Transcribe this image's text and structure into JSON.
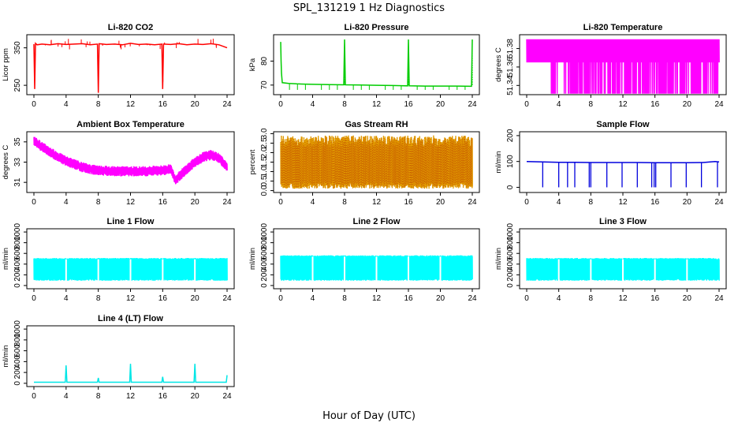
{
  "figure": {
    "title": "SPL_131219  1 Hz Diagnostics",
    "xlabel": "Hour of Day (UTC)"
  },
  "chart_data": [
    {
      "type": "line",
      "title": "Li-820 CO2",
      "ylabel": "Licor ppm",
      "color": "#ff0000",
      "xlim": [
        0,
        24
      ],
      "xticks": [
        0,
        4,
        8,
        12,
        16,
        20,
        24
      ],
      "ylim": [
        225,
        385
      ],
      "yticks": [
        250,
        350
      ],
      "x": [
        0,
        0.1,
        0.2,
        0.4,
        1,
        2,
        3,
        4,
        5,
        6,
        7,
        7.9,
        8,
        8.1,
        9,
        10,
        11,
        12,
        13,
        14,
        15,
        15.9,
        16,
        16.1,
        17,
        18,
        19,
        20,
        21,
        22,
        23,
        24
      ],
      "y": [
        360,
        240,
        362,
        358,
        360,
        358,
        361,
        359,
        360,
        361,
        358,
        360,
        230,
        361,
        359,
        360,
        358,
        362,
        359,
        360,
        358,
        360,
        240,
        360,
        359,
        361,
        358,
        360,
        359,
        361,
        358,
        350
      ]
    },
    {
      "type": "line",
      "title": "Li-820 Pressure",
      "ylabel": "kPa",
      "color": "#00cc00",
      "xlim": [
        0,
        24
      ],
      "xticks": [
        0,
        4,
        8,
        12,
        16,
        20,
        24
      ],
      "ylim": [
        66,
        91
      ],
      "yticks": [
        70,
        80
      ],
      "x": [
        0,
        0.05,
        0.1,
        0.2,
        1,
        2,
        4,
        6,
        7.9,
        8,
        8.1,
        10,
        12,
        14,
        15.9,
        16,
        16.1,
        18,
        20,
        22,
        23.9,
        24
      ],
      "y": [
        88,
        80,
        75,
        71,
        70.7,
        70.5,
        70.3,
        70.2,
        70.1,
        89,
        70.1,
        70,
        69.9,
        69.8,
        69.7,
        89,
        69.7,
        69.6,
        69.6,
        69.6,
        69.5,
        89
      ]
    },
    {
      "type": "area",
      "title": "Li-820 Temperature",
      "ylabel": "degrees C",
      "color": "#ff00ff",
      "xlim": [
        0,
        24
      ],
      "xticks": [
        0,
        4,
        8,
        12,
        16,
        20,
        24
      ],
      "ylim": [
        51.33,
        51.395
      ],
      "yticks": [
        51.34,
        51.36,
        51.38
      ],
      "x": [
        0,
        3,
        4,
        8,
        12,
        16,
        18,
        19,
        20,
        21,
        24
      ],
      "y": [
        51.375,
        51.375,
        51.38,
        51.38,
        51.38,
        51.38,
        51.38,
        51.37,
        51.375,
        51.38,
        51.375
      ]
    },
    {
      "type": "area",
      "title": "Ambient Box Temperature",
      "ylabel": "degrees C",
      "color": "#ff00ff",
      "xlim": [
        0,
        24
      ],
      "xticks": [
        0,
        4,
        8,
        12,
        16,
        20,
        24
      ],
      "ylim": [
        30,
        36
      ],
      "yticks": [
        31,
        33,
        35
      ],
      "x": [
        0,
        1,
        2,
        3,
        4,
        5,
        6,
        7,
        8,
        10,
        12,
        14,
        16,
        17,
        17.6,
        18,
        19,
        20,
        21,
        22,
        23,
        24
      ],
      "y": [
        35.1,
        34.5,
        34,
        33.5,
        33.1,
        32.8,
        32.5,
        32.3,
        32.2,
        32.1,
        32.1,
        32.1,
        32.2,
        32.3,
        31.2,
        31.6,
        32.3,
        33,
        33.5,
        33.7,
        33.4,
        32.5
      ]
    },
    {
      "type": "area",
      "title": "Gas Stream RH",
      "ylabel": "percent",
      "color": "#e6a800",
      "xlim": [
        0,
        24
      ],
      "xticks": [
        0,
        4,
        8,
        12,
        16,
        20,
        24
      ],
      "ylim": [
        -0.1,
        3.1
      ],
      "yticks": [
        0.0,
        0.5,
        1.0,
        1.5,
        2.0,
        2.5,
        3.0
      ],
      "x": [
        0,
        6,
        12,
        18,
        24
      ],
      "y": [
        1.4,
        1.4,
        1.4,
        1.4,
        1.4
      ]
    },
    {
      "type": "line",
      "title": "Sample Flow",
      "ylabel": "ml/min",
      "color": "#0000dd",
      "xlim": [
        0,
        24
      ],
      "xticks": [
        0,
        4,
        8,
        12,
        16,
        20,
        24
      ],
      "ylim": [
        -20,
        215
      ],
      "yticks": [
        0,
        100,
        200
      ],
      "x": [
        0,
        2,
        4,
        6,
        8,
        10,
        12,
        14,
        16,
        18,
        20,
        22,
        23.5,
        24
      ],
      "y": [
        100,
        98,
        97,
        97,
        96,
        96,
        96,
        96,
        95,
        95,
        95,
        96,
        100,
        98
      ]
    },
    {
      "type": "area",
      "title": "Line 1 Flow",
      "ylabel": "ml/min",
      "color": "#00ffff",
      "xlim": [
        0,
        24
      ],
      "xticks": [
        0,
        4,
        8,
        12,
        16,
        20,
        24
      ],
      "ylim": [
        -60,
        1060
      ],
      "yticks": [
        0,
        200,
        400,
        600,
        800,
        1000
      ],
      "x": [
        0,
        24
      ],
      "y": [
        490,
        490
      ]
    },
    {
      "type": "area",
      "title": "Line 2 Flow",
      "ylabel": "ml/min",
      "color": "#00ffff",
      "xlim": [
        0,
        24
      ],
      "xticks": [
        0,
        4,
        8,
        12,
        16,
        20,
        24
      ],
      "ylim": [
        -60,
        1060
      ],
      "yticks": [
        0,
        200,
        400,
        600,
        800,
        1000
      ],
      "x": [
        0,
        24
      ],
      "y": [
        540,
        540
      ]
    },
    {
      "type": "area",
      "title": "Line 3 Flow",
      "ylabel": "ml/min",
      "color": "#00ffff",
      "xlim": [
        0,
        24
      ],
      "xticks": [
        0,
        4,
        8,
        12,
        16,
        20,
        24
      ],
      "ylim": [
        -60,
        1060
      ],
      "yticks": [
        0,
        200,
        400,
        600,
        800,
        1000
      ],
      "x": [
        0,
        24
      ],
      "y": [
        490,
        490
      ]
    },
    {
      "type": "line",
      "title": "Line 4 (LT) Flow",
      "ylabel": "ml/min",
      "color": "#00e6e6",
      "xlim": [
        0,
        24
      ],
      "xticks": [
        0,
        4,
        8,
        12,
        16,
        20,
        24
      ],
      "ylim": [
        -60,
        1060
      ],
      "yticks": [
        0,
        200,
        400,
        600,
        800,
        1000
      ],
      "x": [
        0,
        3.9,
        4,
        4.1,
        7.9,
        8,
        8.1,
        11.9,
        12,
        12.1,
        15.9,
        16,
        16.1,
        19.9,
        20,
        20.1,
        23.9,
        24
      ],
      "y": [
        20,
        20,
        330,
        20,
        20,
        100,
        20,
        20,
        360,
        20,
        20,
        120,
        20,
        20,
        360,
        20,
        20,
        150
      ]
    }
  ]
}
